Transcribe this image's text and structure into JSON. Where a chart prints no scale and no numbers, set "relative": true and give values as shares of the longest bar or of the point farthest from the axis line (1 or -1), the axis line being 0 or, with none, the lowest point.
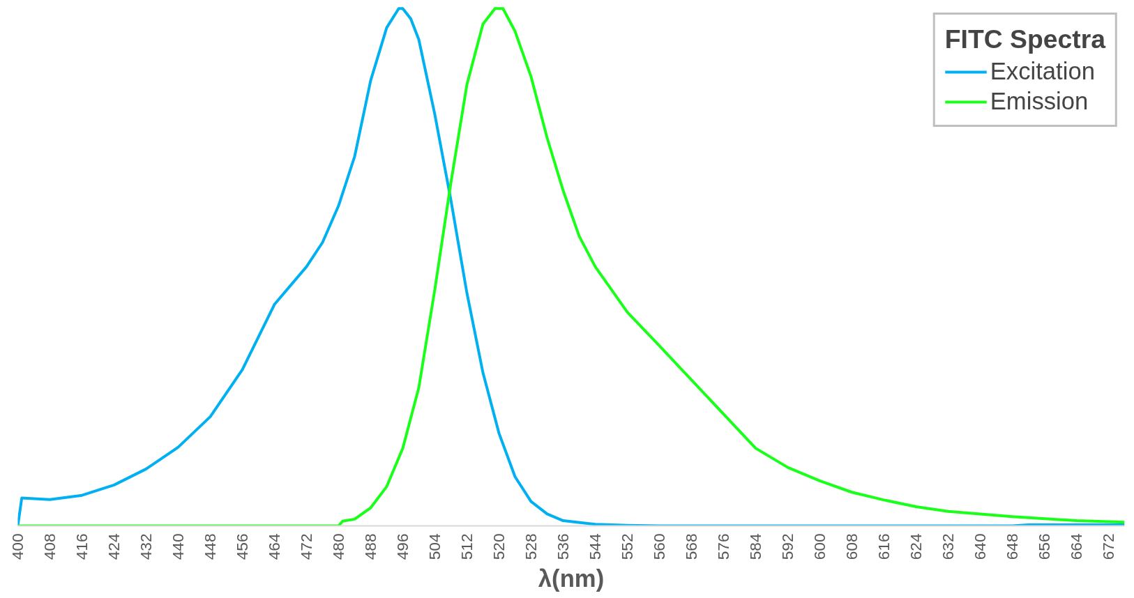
{
  "chart_data": {
    "type": "line",
    "relative": true,
    "xlabel": "λ(nm)",
    "legend_title": "FITC Spectra",
    "legend": "top right",
    "grid": false,
    "xlim": [
      400,
      676
    ],
    "xticks": [
      400,
      408,
      416,
      424,
      432,
      440,
      448,
      456,
      464,
      472,
      480,
      488,
      496,
      504,
      512,
      520,
      528,
      536,
      544,
      552,
      560,
      568,
      576,
      584,
      592,
      600,
      608,
      616,
      624,
      632,
      640,
      648,
      656,
      664,
      672
    ],
    "series": [
      {
        "name": "Excitation",
        "color": "#00b0f0",
        "x": [
          400,
          401,
          408,
          416,
          424,
          432,
          440,
          448,
          456,
          464,
          472,
          476,
          480,
          484,
          488,
          492,
          495,
          496,
          498,
          500,
          504,
          508,
          512,
          516,
          520,
          524,
          528,
          532,
          536,
          544,
          552,
          560,
          600,
          648,
          652,
          676
        ],
        "values": [
          0,
          0.054,
          0.051,
          0.059,
          0.079,
          0.11,
          0.152,
          0.211,
          0.302,
          0.428,
          0.501,
          0.548,
          0.619,
          0.714,
          0.861,
          0.963,
          1,
          1,
          0.98,
          0.94,
          0.795,
          0.63,
          0.45,
          0.296,
          0.179,
          0.095,
          0.047,
          0.023,
          0.01,
          0.003,
          0.001,
          0,
          0,
          0,
          0.002,
          0.002
        ]
      },
      {
        "name": "Emission",
        "color": "#1aff1a",
        "x": [
          400,
          480,
          481,
          484,
          488,
          492,
          496,
          500,
          504,
          508,
          512,
          516,
          519,
          521,
          524,
          528,
          532,
          536,
          540,
          544,
          552,
          560,
          568,
          576,
          584,
          592,
          600,
          608,
          616,
          624,
          632,
          648,
          664,
          676
        ],
        "values": [
          0,
          0,
          0.009,
          0.013,
          0.035,
          0.076,
          0.15,
          0.267,
          0.457,
          0.663,
          0.853,
          0.97,
          1,
          1,
          0.956,
          0.868,
          0.75,
          0.648,
          0.56,
          0.501,
          0.413,
          0.348,
          0.282,
          0.216,
          0.15,
          0.113,
          0.087,
          0.065,
          0.05,
          0.037,
          0.028,
          0.018,
          0.01,
          0.007
        ]
      }
    ]
  }
}
